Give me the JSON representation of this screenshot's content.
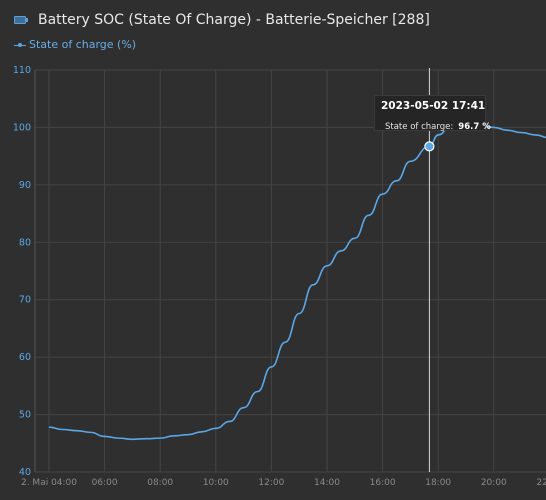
{
  "header": {
    "title": "Battery SOC (State Of Charge) - Batterie-Speicher [288]",
    "icon": "battery-icon",
    "legend_label": "State of charge (%)"
  },
  "colors": {
    "background": "#2f2f2f",
    "grid": "#444444",
    "line": "#5aa7e8",
    "axis_label": "#5aa7e8",
    "tick_label": "#8a8a8a"
  },
  "tooltip": {
    "time": "2023-05-02 17:41",
    "series_name": "State of charge:",
    "value_text": "96.7 %"
  },
  "chart_data": {
    "type": "line",
    "title": "Battery SOC (State Of Charge) - Batterie-Speicher [288]",
    "series": [
      {
        "name": "State of charge (%)",
        "x": [
          "04:00",
          "04:30",
          "05:00",
          "05:30",
          "06:00",
          "06:30",
          "07:00",
          "07:30",
          "08:00",
          "08:30",
          "09:00",
          "09:30",
          "10:00",
          "10:30",
          "11:00",
          "11:30",
          "12:00",
          "12:30",
          "13:00",
          "13:30",
          "14:00",
          "14:30",
          "15:00",
          "15:30",
          "16:00",
          "16:30",
          "17:00",
          "17:41",
          "18:00",
          "18:30",
          "19:00",
          "19:30",
          "20:00",
          "20:30",
          "21:00",
          "21:30",
          "22:00",
          "22:30"
        ],
        "values": [
          47.8,
          47.4,
          47.2,
          46.9,
          46.2,
          45.9,
          45.7,
          45.8,
          45.9,
          46.3,
          46.5,
          47.0,
          47.6,
          48.8,
          51.2,
          54.0,
          58.3,
          62.6,
          67.6,
          72.6,
          75.9,
          78.5,
          80.7,
          84.7,
          88.4,
          90.7,
          94.1,
          96.7,
          98.7,
          100.5,
          100.6,
          100.3,
          100.0,
          99.5,
          99.1,
          98.7,
          98.2,
          97.6
        ]
      }
    ],
    "x_ticks": [
      "2. Mai 04:00",
      "06:00",
      "08:00",
      "10:00",
      "12:00",
      "14:00",
      "16:00",
      "18:00",
      "20:00",
      "22:00"
    ],
    "y_ticks": [
      40,
      50,
      60,
      70,
      80,
      90,
      100,
      110
    ],
    "ylim": [
      40,
      110
    ],
    "grid": true,
    "tooltip_point": {
      "x": "17:41",
      "y": 96.7
    }
  }
}
